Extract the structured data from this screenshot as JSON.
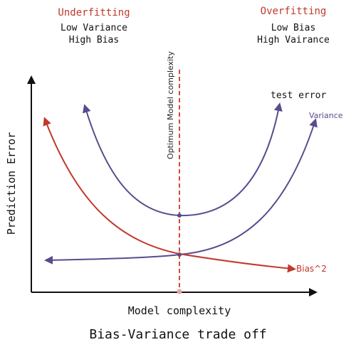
{
  "regions": {
    "left": {
      "heading": "Underfitting",
      "line1": "Low Variance",
      "line2": "High Bias"
    },
    "right": {
      "heading": "Overfitting",
      "line1": "Low Bias",
      "line2": "High Vairance"
    }
  },
  "axes": {
    "y_label": "Prediction Error",
    "x_label": "Model complexity"
  },
  "optimum_label": "Optimum Model complexity",
  "curves": {
    "test_error": "test error",
    "variance": "Variance",
    "bias": "Bias^2"
  },
  "caption": "Bias-Variance trade off",
  "colors": {
    "heading_red": "#c0392b",
    "bias_red": "#c0392b",
    "purple": "#5b4a8e",
    "axis": "#111111",
    "optimum_line": "#d44a3a"
  }
}
